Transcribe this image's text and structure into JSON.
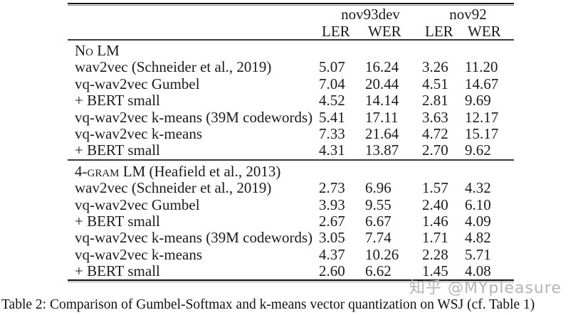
{
  "table": {
    "col_groups": [
      {
        "label": "nov93dev"
      },
      {
        "label": "nov92"
      }
    ],
    "col_headers": [
      "LER",
      "WER",
      "LER",
      "WER"
    ],
    "sections": [
      {
        "header": {
          "pre": "N",
          "sc": "o",
          "post": " LM"
        },
        "rows": [
          {
            "label": "wav2vec (Schneider et al., 2019)",
            "values": [
              "5.07",
              "16.24",
              "3.26",
              "11.20"
            ]
          },
          {
            "label": "vq-wav2vec Gumbel",
            "values": [
              "7.04",
              "20.44",
              "4.51",
              "14.67"
            ]
          },
          {
            "label": "+ BERT small",
            "values": [
              "4.52",
              "14.14",
              "2.81",
              "9.69"
            ]
          },
          {
            "label": "vq-wav2vec k-means (39M codewords)",
            "values": [
              "5.41",
              "17.11",
              "3.63",
              "12.17"
            ]
          },
          {
            "label": "vq-wav2vec k-means",
            "values": [
              "7.33",
              "21.64",
              "4.72",
              "15.17"
            ]
          },
          {
            "label": "+ BERT small",
            "values": [
              "4.31",
              "13.87",
              "2.70",
              "9.62"
            ]
          }
        ]
      },
      {
        "header": {
          "pre": "4-",
          "sc": "gram",
          "post": " LM (Heafield et al., 2013)"
        },
        "rows": [
          {
            "label": "wav2vec (Schneider et al., 2019)",
            "values": [
              "2.73",
              "6.96",
              "1.57",
              "4.32"
            ]
          },
          {
            "label": "vq-wav2vec Gumbel",
            "values": [
              "3.93",
              "9.55",
              "2.40",
              "6.10"
            ]
          },
          {
            "label": "+ BERT small",
            "values": [
              "2.67",
              "6.67",
              "1.46",
              "4.09"
            ]
          },
          {
            "label": "vq-wav2vec k-means (39M codewords)",
            "values": [
              "3.05",
              "7.74",
              "1.71",
              "4.82"
            ]
          },
          {
            "label": "vq-wav2vec k-means",
            "values": [
              "4.37",
              "10.26",
              "2.28",
              "5.71"
            ]
          },
          {
            "label": "+ BERT small",
            "values": [
              "2.60",
              "6.62",
              "1.45",
              "4.08"
            ]
          }
        ]
      }
    ]
  },
  "watermark": "知乎 @MYpleasure",
  "caption": "Table 2: Comparison of Gumbel-Softmax and k-means vector quantization on WSJ (cf. Table 1)"
}
